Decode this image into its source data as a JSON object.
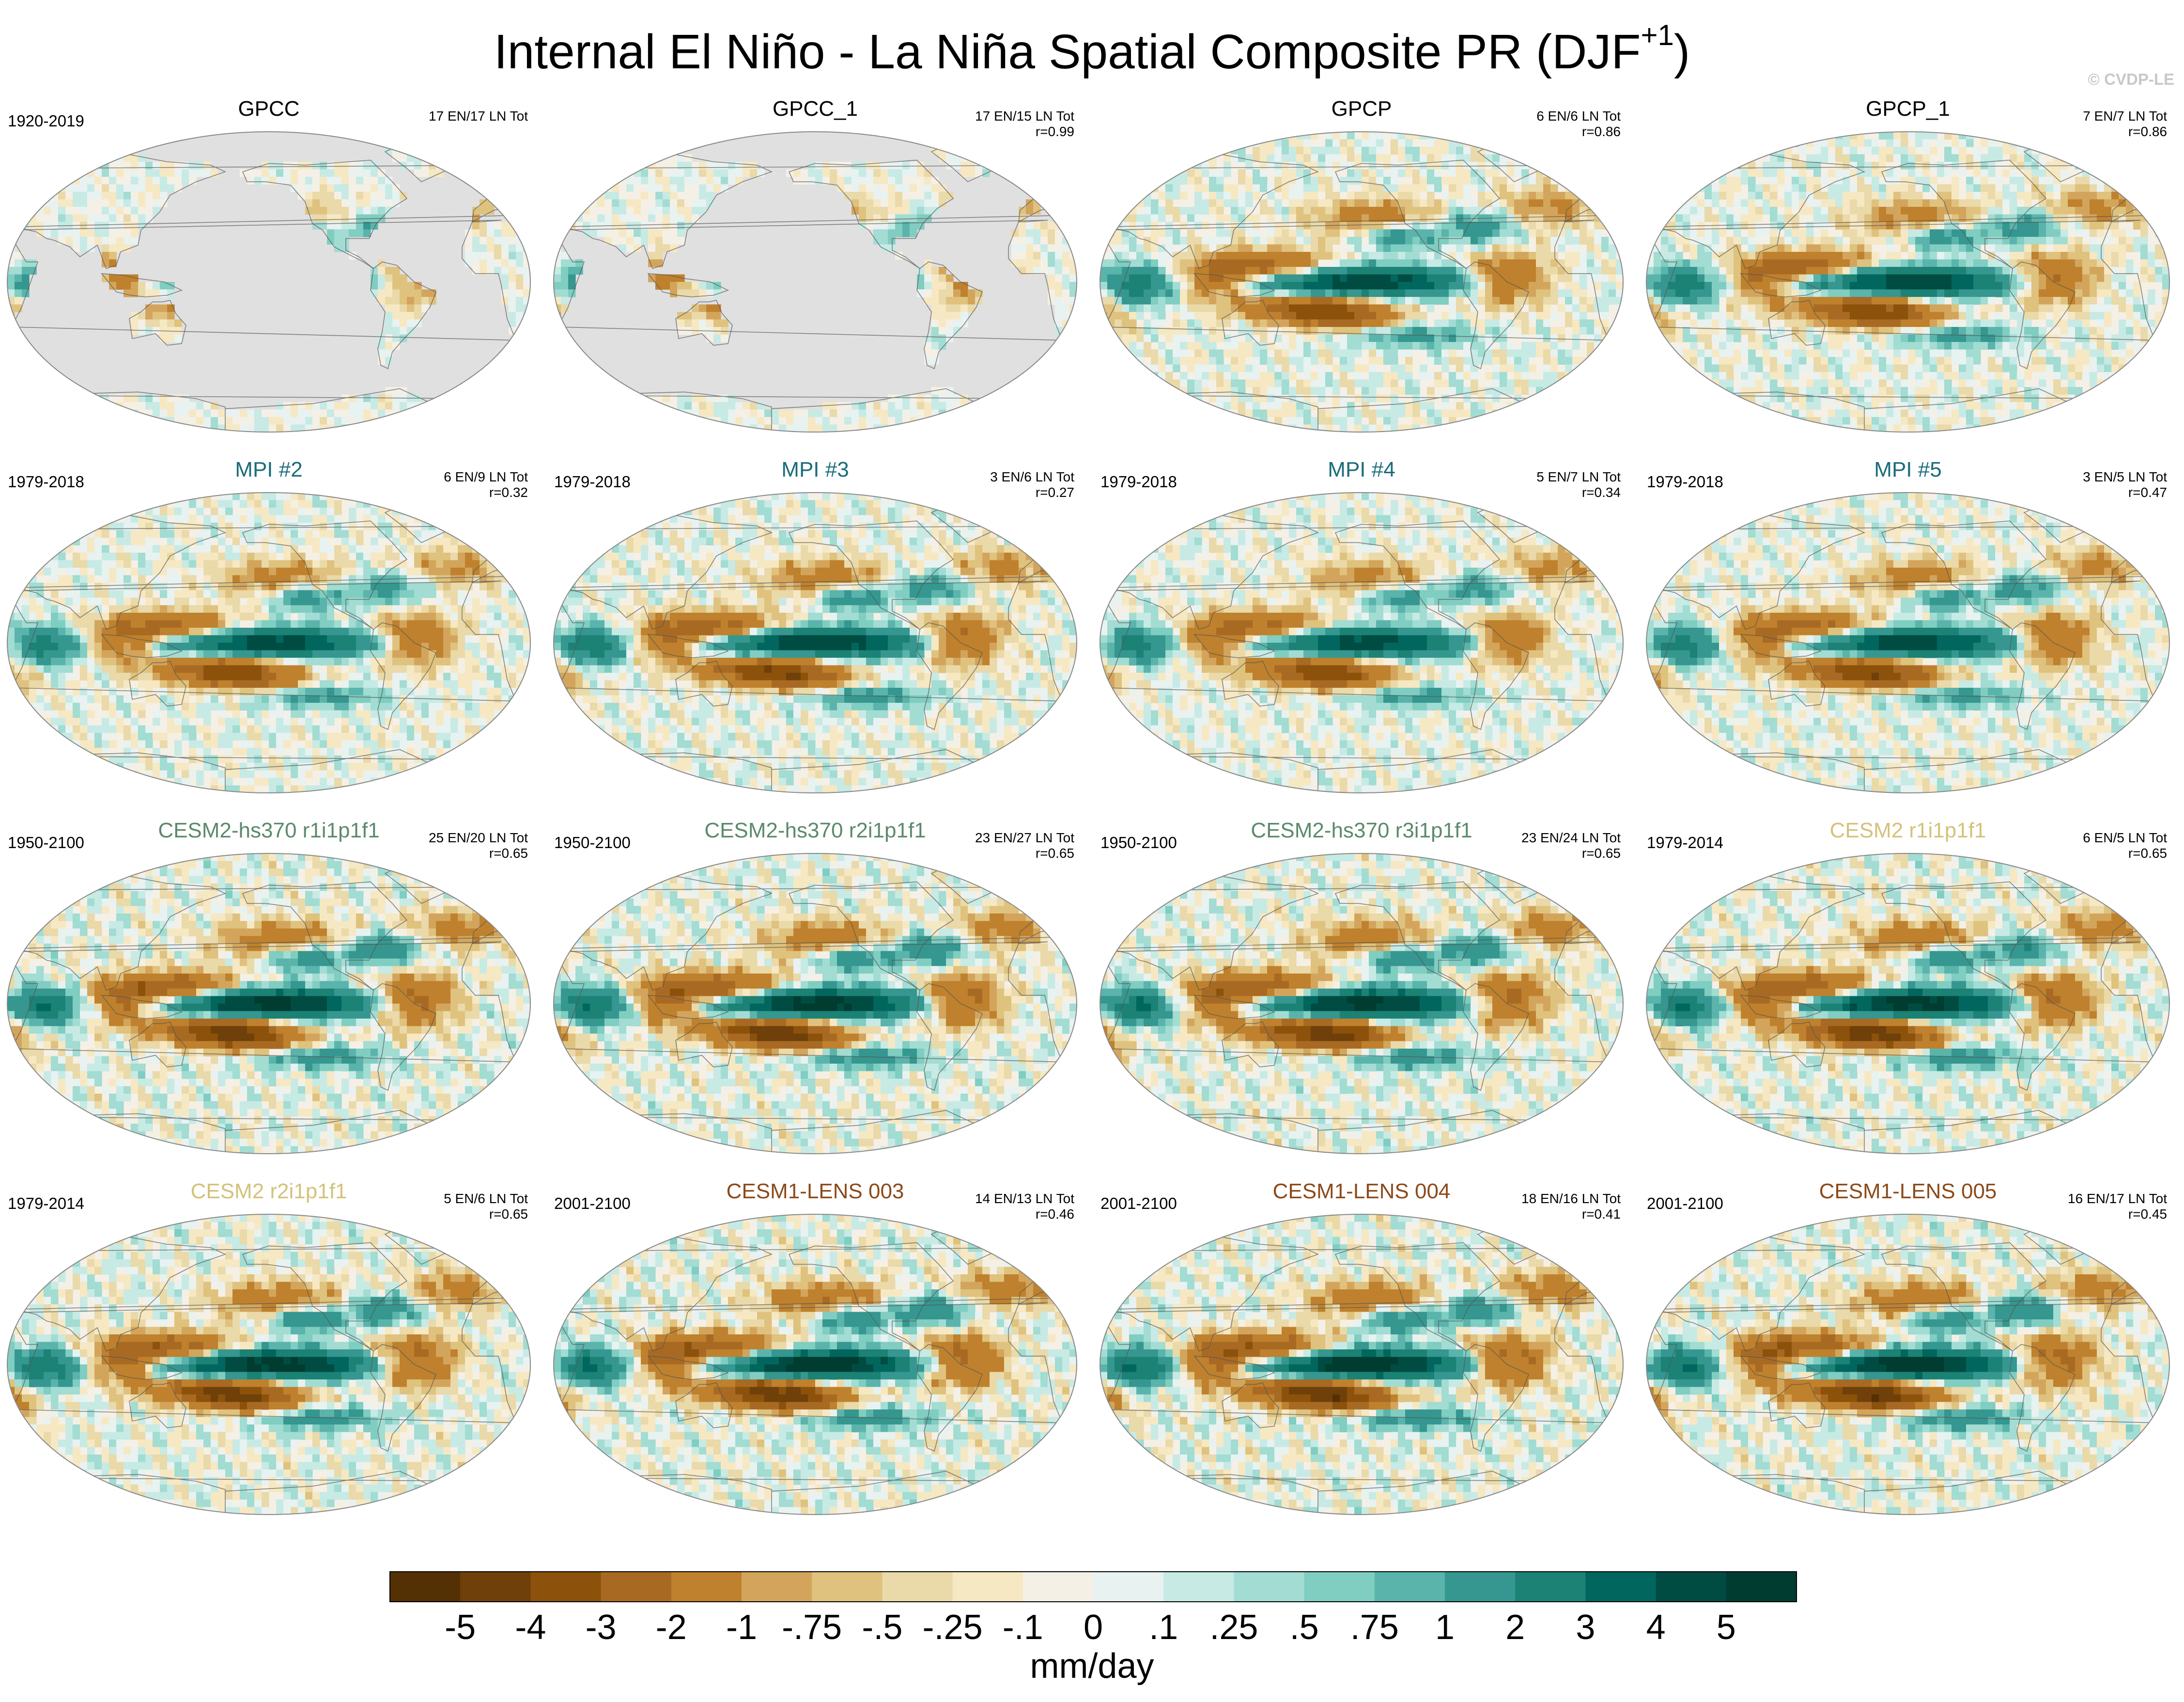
{
  "figure": {
    "title": "Internal El Niño - La Niña Spatial Composite PR (DJF",
    "title_sup": "+1",
    "title_close": ")",
    "watermark": "© CVDP-LE"
  },
  "colors": {
    "neg5": "#543005",
    "neg4": "#6f4009",
    "neg3": "#8c510a",
    "neg2": "#a86a23",
    "neg1": "#bf812d",
    "neg075": "#d3a55c",
    "neg05": "#dfc27d",
    "neg025": "#ead9a9",
    "neg01": "#f6e8c3",
    "zero_neg": "#f5f0e6",
    "zero_pos": "#e8f2f0",
    "pos01": "#c7eae5",
    "pos025": "#a2dcd3",
    "pos05": "#80cdc1",
    "pos075": "#5ab4ac",
    "pos1": "#35978f",
    "pos2": "#1b8275",
    "pos3": "#01665e",
    "pos4": "#014c42",
    "pos5": "#003c30",
    "land_gray": "#e0e0e0",
    "obs_title": "#000000",
    "mpi_title": "#1a6c7a",
    "cesm2hs_title": "#5b8a6b",
    "cesm2_title": "#d3c27a",
    "cesm1_title": "#8c4a1a"
  },
  "chart_data": {
    "type": "heatmap",
    "title": "Internal El Niño - La Niña Spatial Composite PR (DJF+1)",
    "colorbar": {
      "label": "mm/day",
      "levels": [
        -5,
        -4,
        -3,
        -2,
        -1,
        -0.75,
        -0.5,
        -0.25,
        -0.1,
        0,
        0.1,
        0.25,
        0.5,
        0.75,
        1,
        2,
        3,
        4,
        5
      ],
      "tick_labels": [
        "-5",
        "-4",
        "-3",
        "-2",
        "-1",
        "-.75",
        "-.5",
        "-.25",
        "-.1",
        "0",
        ".1",
        ".25",
        ".5",
        ".75",
        "1",
        "2",
        "3",
        "4",
        "5"
      ]
    },
    "panels": [
      {
        "title": "GPCC",
        "years": "1920-2019",
        "counts": "17 EN/17 LN Tot",
        "corr": "",
        "group": "obs",
        "mode": "land",
        "strength": 0.6
      },
      {
        "title": "GPCC_1",
        "years": "",
        "counts": "17 EN/15 LN Tot",
        "corr": "r=0.99",
        "group": "obs",
        "mode": "land",
        "strength": 0.6
      },
      {
        "title": "GPCP",
        "years": "",
        "counts": "6 EN/6 LN Tot",
        "corr": "r=0.86",
        "group": "obs",
        "mode": "full",
        "strength": 0.85
      },
      {
        "title": "GPCP_1",
        "years": "",
        "counts": "7 EN/7 LN Tot",
        "corr": "r=0.86",
        "group": "obs",
        "mode": "full",
        "strength": 0.85
      },
      {
        "title": "MPI #2",
        "years": "1979-2018",
        "counts": "6 EN/9 LN Tot",
        "corr": "r=0.32",
        "group": "mpi",
        "mode": "full",
        "strength": 0.8
      },
      {
        "title": "MPI #3",
        "years": "1979-2018",
        "counts": "3 EN/6 LN Tot",
        "corr": "r=0.27",
        "group": "mpi",
        "mode": "full",
        "strength": 0.9
      },
      {
        "title": "MPI #4",
        "years": "1979-2018",
        "counts": "5 EN/7 LN Tot",
        "corr": "r=0.34",
        "group": "mpi",
        "mode": "full",
        "strength": 0.8
      },
      {
        "title": "MPI #5",
        "years": "1979-2018",
        "counts": "3 EN/5 LN Tot",
        "corr": "r=0.47",
        "group": "mpi",
        "mode": "full",
        "strength": 0.85
      },
      {
        "title": "CESM2-hs370 r1i1p1f1",
        "years": "1950-2100",
        "counts": "25 EN/20 LN Tot",
        "corr": "r=0.65",
        "group": "cesm2hs",
        "mode": "full",
        "strength": 1.0
      },
      {
        "title": "CESM2-hs370 r2i1p1f1",
        "years": "1950-2100",
        "counts": "23 EN/27 LN Tot",
        "corr": "r=0.65",
        "group": "cesm2hs",
        "mode": "full",
        "strength": 1.0
      },
      {
        "title": "CESM2-hs370 r3i1p1f1",
        "years": "1950-2100",
        "counts": "23 EN/24 LN Tot",
        "corr": "r=0.65",
        "group": "cesm2hs",
        "mode": "full",
        "strength": 1.0
      },
      {
        "title": "CESM2 r1i1p1f1",
        "years": "1979-2014",
        "counts": "6 EN/5 LN Tot",
        "corr": "r=0.65",
        "group": "cesm2",
        "mode": "full",
        "strength": 1.0
      },
      {
        "title": "CESM2 r2i1p1f1",
        "years": "1979-2014",
        "counts": "5 EN/6 LN Tot",
        "corr": "r=0.65",
        "group": "cesm2",
        "mode": "full",
        "strength": 1.0
      },
      {
        "title": "CESM1-LENS 003",
        "years": "2001-2100",
        "counts": "14 EN/13 LN Tot",
        "corr": "r=0.46",
        "group": "cesm1",
        "mode": "full",
        "strength": 1.05
      },
      {
        "title": "CESM1-LENS 004",
        "years": "2001-2100",
        "counts": "18 EN/16 LN Tot",
        "corr": "r=0.41",
        "group": "cesm1",
        "mode": "full",
        "strength": 1.05
      },
      {
        "title": "CESM1-LENS 005",
        "years": "2001-2100",
        "counts": "16 EN/17 LN Tot",
        "corr": "r=0.45",
        "group": "cesm1",
        "mode": "full",
        "strength": 1.05
      }
    ]
  }
}
